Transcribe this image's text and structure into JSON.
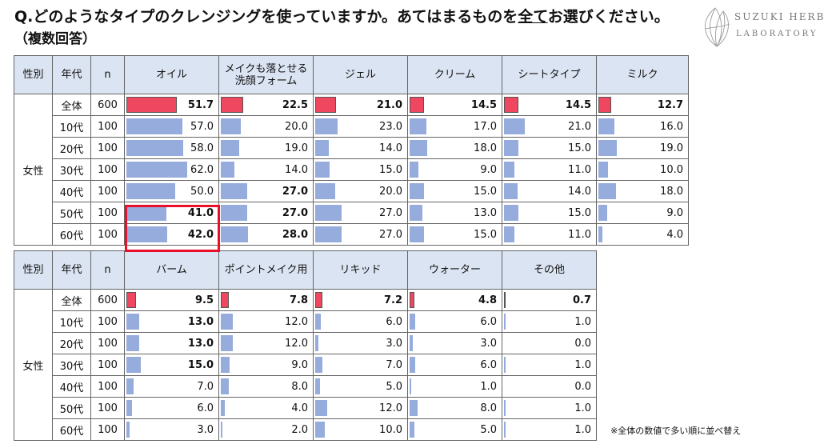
{
  "question": {
    "prefix": "Q.どのようなタイプのクレンジングを使っていますか。あてはまるものを",
    "emph": "全て",
    "suffix": "お選びください。",
    "sub": "（複数回答）"
  },
  "logo": {
    "line1": "SUZUKI HERB",
    "line2": "LABORATORY"
  },
  "headers": {
    "gender": "性別",
    "age": "年代",
    "n": "n"
  },
  "gender_label": "女性",
  "ages": [
    "全体",
    "10代",
    "20代",
    "30代",
    "40代",
    "50代",
    "60代"
  ],
  "ns": [
    "600",
    "100",
    "100",
    "100",
    "100",
    "100",
    "100"
  ],
  "note": "※全体の数値で多い順に並べ替え",
  "colors": {
    "total_bar": "#ef4760",
    "age_bar": "#96acdc",
    "header_bg": "#dbe4f2",
    "highlight": "#e8102a"
  },
  "chart_data": {
    "type": "table",
    "unit": "%",
    "rows": [
      "全体",
      "10代",
      "20代",
      "30代",
      "40代",
      "50代",
      "60代"
    ],
    "n": [
      600,
      100,
      100,
      100,
      100,
      100,
      100
    ],
    "max_value": 62,
    "tables": [
      {
        "categories": [
          "オイル",
          "メイクも落とせる洗顔フォーム",
          "ジェル",
          "クリーム",
          "シートタイプ",
          "ミルク"
        ],
        "category_lines": [
          [
            "オイル"
          ],
          [
            "メイクも落とせる",
            "洗顔フォーム"
          ],
          [
            "ジェル"
          ],
          [
            "クリーム"
          ],
          [
            "シートタイプ"
          ],
          [
            "ミルク"
          ]
        ],
        "values": [
          [
            51.7,
            22.5,
            21.0,
            14.5,
            14.5,
            12.7
          ],
          [
            57.0,
            20.0,
            23.0,
            17.0,
            21.0,
            16.0
          ],
          [
            58.0,
            19.0,
            14.0,
            18.0,
            15.0,
            19.0
          ],
          [
            62.0,
            14.0,
            15.0,
            9.0,
            11.0,
            10.0
          ],
          [
            50.0,
            27.0,
            20.0,
            15.0,
            14.0,
            18.0
          ],
          [
            41.0,
            27.0,
            27.0,
            13.0,
            15.0,
            9.0
          ],
          [
            42.0,
            28.0,
            27.0,
            15.0,
            11.0,
            4.0
          ]
        ],
        "bold": [
          [
            true,
            true,
            true,
            true,
            true,
            true
          ],
          [
            false,
            false,
            false,
            false,
            false,
            false
          ],
          [
            false,
            false,
            false,
            false,
            false,
            false
          ],
          [
            false,
            false,
            false,
            false,
            false,
            false
          ],
          [
            false,
            true,
            false,
            false,
            false,
            false
          ],
          [
            true,
            true,
            false,
            false,
            false,
            false
          ],
          [
            true,
            true,
            false,
            false,
            false,
            false
          ]
        ],
        "highlighted": {
          "category": "オイル",
          "rows": [
            "50代",
            "60代"
          ]
        }
      },
      {
        "categories": [
          "バーム",
          "ポイントメイク用",
          "リキッド",
          "ウォーター",
          "その他"
        ],
        "category_lines": [
          [
            "バーム"
          ],
          [
            "ポイントメイク用"
          ],
          [
            "リキッド"
          ],
          [
            "ウォーター"
          ],
          [
            "その他"
          ]
        ],
        "values": [
          [
            9.5,
            7.8,
            7.2,
            4.8,
            0.7
          ],
          [
            13.0,
            12.0,
            6.0,
            6.0,
            1.0
          ],
          [
            13.0,
            12.0,
            3.0,
            3.0,
            0.0
          ],
          [
            15.0,
            9.0,
            7.0,
            6.0,
            1.0
          ],
          [
            7.0,
            8.0,
            5.0,
            1.0,
            0.0
          ],
          [
            6.0,
            4.0,
            12.0,
            8.0,
            1.0
          ],
          [
            3.0,
            2.0,
            10.0,
            5.0,
            1.0
          ]
        ],
        "bold": [
          [
            true,
            true,
            true,
            true,
            true
          ],
          [
            true,
            false,
            false,
            false,
            false
          ],
          [
            true,
            false,
            false,
            false,
            false
          ],
          [
            true,
            false,
            false,
            false,
            false
          ],
          [
            false,
            false,
            false,
            false,
            false
          ],
          [
            false,
            false,
            false,
            false,
            false
          ],
          [
            false,
            false,
            false,
            false,
            false
          ]
        ]
      }
    ]
  }
}
